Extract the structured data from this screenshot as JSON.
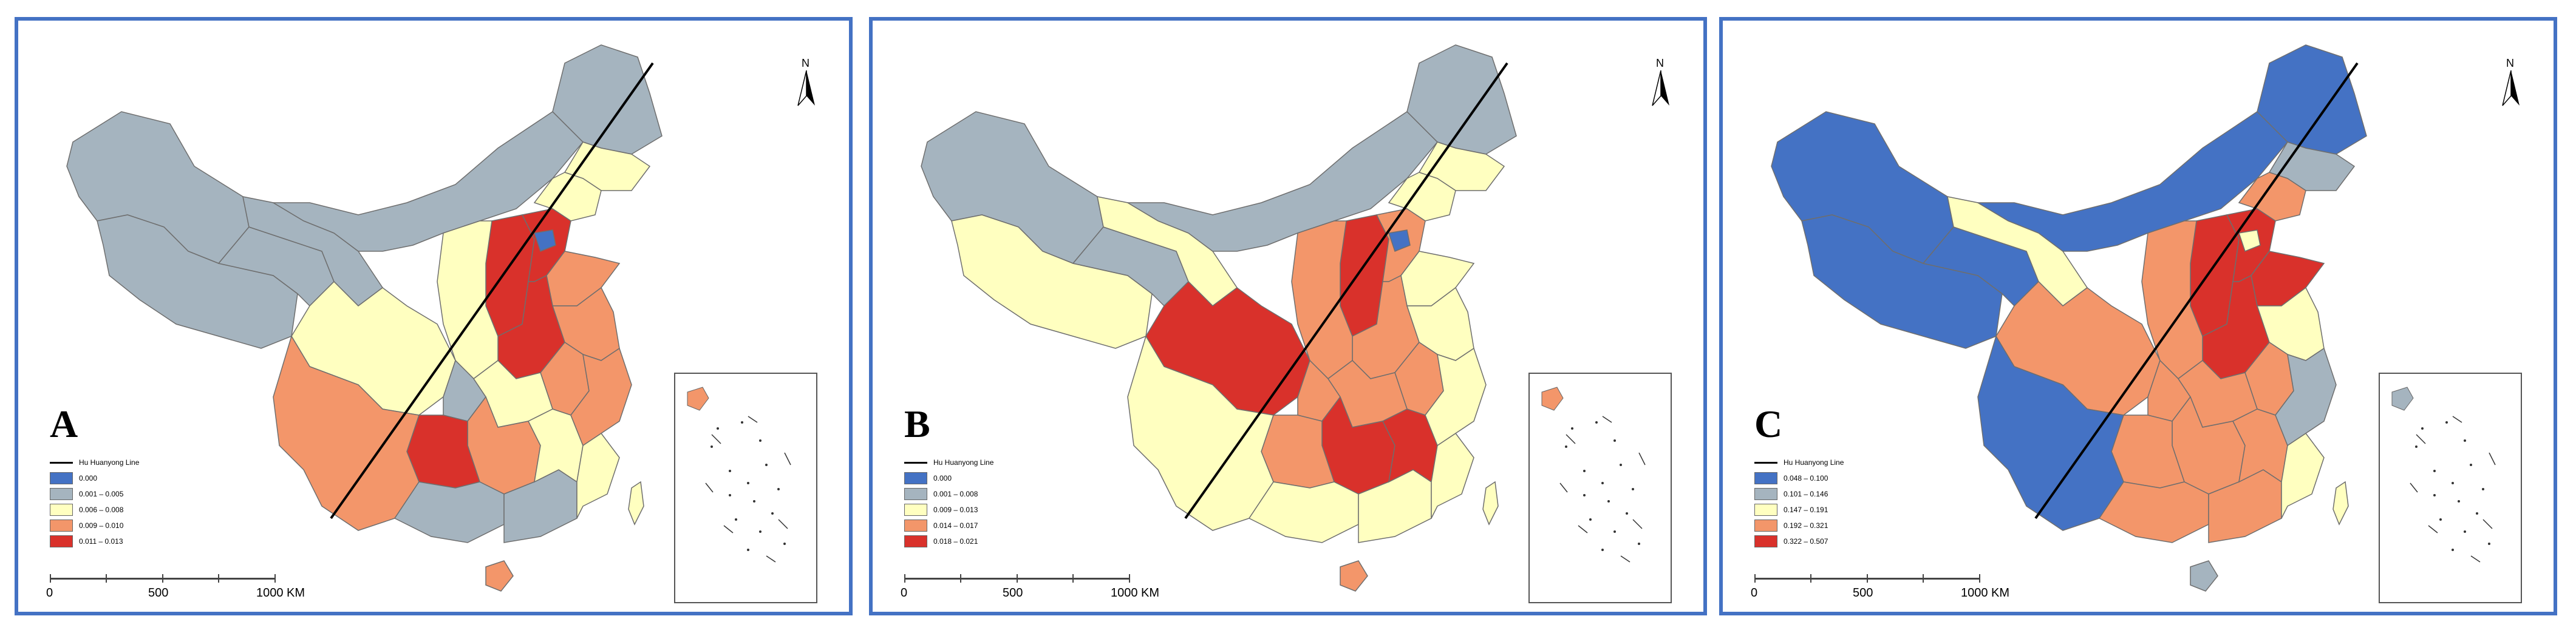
{
  "line_color": "#000000",
  "panels": [
    {
      "letter": "A",
      "line_label": "Hu Huanyong Line",
      "legend": [
        {
          "label": "0.000",
          "color": "#4472C4"
        },
        {
          "label": "0.001 – 0.005",
          "color": "#A5B4BF"
        },
        {
          "label": "0.006 – 0.008",
          "color": "#FFFFC0"
        },
        {
          "label": "0.009 – 0.010",
          "color": "#F3966A"
        },
        {
          "label": "0.011 – 0.013",
          "color": "#D9312B"
        }
      ],
      "regions": {
        "northwest": 1,
        "tibet": 1,
        "qinghai": 1,
        "gansu": 1,
        "innermongolia": 1,
        "heilongjiang": 1,
        "jilin": 2,
        "liaoning": 2,
        "shanxi": 4,
        "hebei": 4,
        "beijing": 0,
        "shandong": 3,
        "henan": 4,
        "jiangsu": 3,
        "anhui": 3,
        "shaanxi": 2,
        "sichuan": 2,
        "chongqing": 1,
        "hubei": 2,
        "hunan": 3,
        "guizhou": 4,
        "yunnan": 3,
        "guangxi": 1,
        "guangdong": 1,
        "jiangxi": 2,
        "fujian": 2,
        "zhejiang": 3,
        "hainan": 3,
        "taiwan": 2
      }
    },
    {
      "letter": "B",
      "line_label": "Hu Huanyong Line",
      "legend": [
        {
          "label": "0.000",
          "color": "#4472C4"
        },
        {
          "label": "0.001 – 0.008",
          "color": "#A5B4BF"
        },
        {
          "label": "0.009 – 0.013",
          "color": "#FFFFC0"
        },
        {
          "label": "0.014 – 0.017",
          "color": "#F3966A"
        },
        {
          "label": "0.018 – 0.021",
          "color": "#D9312B"
        }
      ],
      "regions": {
        "northwest": 1,
        "tibet": 2,
        "qinghai": 1,
        "gansu": 2,
        "innermongolia": 1,
        "heilongjiang": 1,
        "jilin": 2,
        "liaoning": 2,
        "shanxi": 4,
        "hebei": 3,
        "beijing": 0,
        "shandong": 2,
        "henan": 3,
        "jiangsu": 2,
        "anhui": 3,
        "shaanxi": 3,
        "sichuan": 4,
        "chongqing": 3,
        "hubei": 3,
        "hunan": 4,
        "guizhou": 3,
        "yunnan": 2,
        "guangxi": 2,
        "guangdong": 2,
        "jiangxi": 4,
        "fujian": 2,
        "zhejiang": 2,
        "hainan": 3,
        "taiwan": 2
      }
    },
    {
      "letter": "C",
      "line_label": "Hu Huanyong Line",
      "legend": [
        {
          "label": "0.048 – 0.100",
          "color": "#4472C4"
        },
        {
          "label": "0.101 – 0.146",
          "color": "#A5B4BF"
        },
        {
          "label": "0.147 – 0.191",
          "color": "#FFFFC0"
        },
        {
          "label": "0.192 – 0.321",
          "color": "#F3966A"
        },
        {
          "label": "0.322 – 0.507",
          "color": "#D9312B"
        }
      ],
      "regions": {
        "northwest": 0,
        "tibet": 0,
        "qinghai": 0,
        "gansu": 2,
        "innermongolia": 0,
        "heilongjiang": 0,
        "jilin": 1,
        "liaoning": 3,
        "shanxi": 4,
        "hebei": 4,
        "beijing": 2,
        "shandong": 4,
        "henan": 4,
        "jiangsu": 2,
        "anhui": 3,
        "shaanxi": 3,
        "sichuan": 3,
        "chongqing": 3,
        "hubei": 3,
        "hunan": 3,
        "guizhou": 3,
        "yunnan": 0,
        "guangxi": 3,
        "guangdong": 3,
        "jiangxi": 3,
        "fujian": 2,
        "zhejiang": 1,
        "hainan": 1,
        "taiwan": 2
      }
    }
  ],
  "scale": {
    "labels": [
      "0",
      "500",
      "1000 KM"
    ]
  },
  "north_label": "N"
}
